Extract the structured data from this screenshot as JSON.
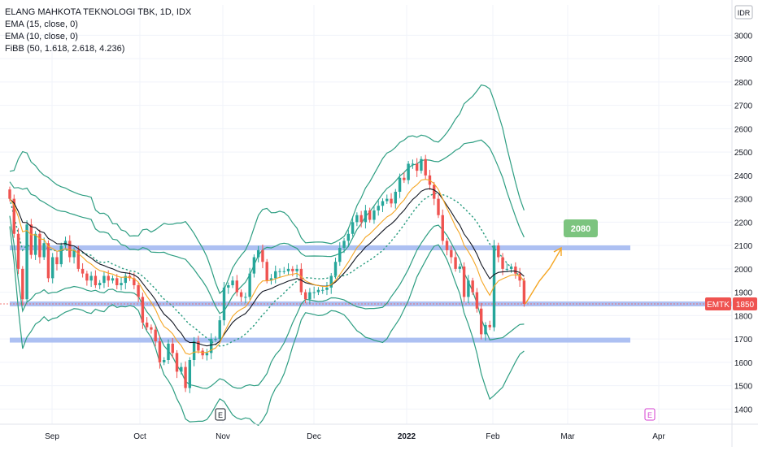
{
  "legend": {
    "symbol": "ELANG MAHKOTA TEKNOLOGI TBK, 1D, IDX",
    "ema15": "EMA (15, close, 0)",
    "ema10": "EMA (10, close, 0)",
    "fibb": "FiBB (50, 1.618, 2.618, 4.236)"
  },
  "currency": "IDR",
  "price_tag": {
    "ticker": "EMTK",
    "price": "1850"
  },
  "target_label": "2080",
  "event_markers": [
    "E",
    "E"
  ],
  "colors": {
    "up": "#26a69a",
    "down": "#ef5350",
    "band": "#2e9e82",
    "ema15": "#131722",
    "ema10": "#f5a623",
    "zone": "#9fb5f0",
    "arrow": "#f5a623",
    "target": "#7cc47f",
    "price_line": "#ef5350",
    "event_future": "#d53fd0"
  },
  "chart_data": {
    "type": "candlestick",
    "x_ticks": [
      "Sep",
      "Oct",
      "Nov",
      "Dec",
      "2022",
      "Feb",
      "Mar",
      "Apr"
    ],
    "y_ticks": [
      1400,
      1500,
      1600,
      1700,
      1800,
      1900,
      2000,
      2100,
      2200,
      2300,
      2400,
      2500,
      2600,
      2700,
      2800,
      2900,
      3000
    ],
    "ylim": [
      1350,
      3100
    ],
    "horizontal_levels": [
      2090,
      1850,
      1695
    ],
    "last_price": 1850,
    "projection_target": 2080,
    "candles_close": [
      2300,
      2150,
      2000,
      1870,
      2190,
      2060,
      2150,
      2050,
      2110,
      1960,
      2050,
      2020,
      2100,
      2120,
      2050,
      2080,
      2000,
      1980,
      1950,
      1970,
      1930,
      1940,
      1970,
      1950,
      1960,
      1930,
      1940,
      1970,
      1960,
      1930,
      1880,
      1770,
      1750,
      1740,
      1690,
      1600,
      1610,
      1680,
      1640,
      1560,
      1580,
      1490,
      1610,
      1690,
      1650,
      1630,
      1640,
      1700,
      1700,
      1780,
      1920,
      1930,
      1950,
      1900,
      1880,
      1880,
      1980,
      2050,
      2080,
      2030,
      1950,
      1960,
      1990,
      1990,
      1990,
      2000,
      1990,
      2000,
      1900,
      1870,
      1900,
      1900,
      1910,
      1910,
      1920,
      1970,
      2030,
      2090,
      2120,
      2150,
      2200,
      2230,
      2200,
      2250,
      2210,
      2250,
      2270,
      2290,
      2300,
      2280,
      2330,
      2390,
      2380,
      2450,
      2450,
      2420,
      2470,
      2400,
      2360,
      2300,
      2230,
      2120,
      2080,
      2050,
      2000,
      2010,
      1880,
      1950,
      1900,
      1830,
      1720,
      1760,
      1750,
      2100,
      2050,
      2000,
      2000,
      2010,
      1980,
      1950,
      1850
    ],
    "series": [
      {
        "name": "EMA (15, close, 0)",
        "role": "ema15"
      },
      {
        "name": "EMA (10, close, 0)",
        "role": "ema10"
      },
      {
        "name": "FiBB (50, 1.618, 2.618, 4.236)",
        "role": "bands"
      }
    ]
  }
}
